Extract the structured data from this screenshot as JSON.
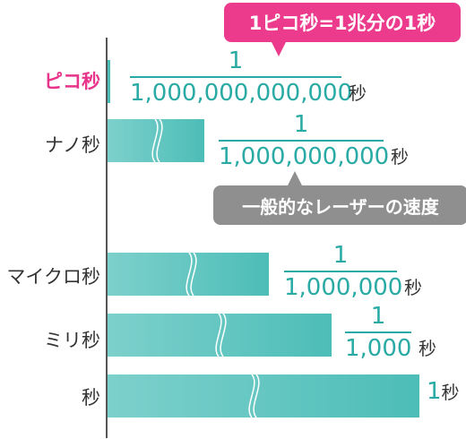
{
  "callouts": {
    "pico_definition": "1ピコ秒=1兆分の1秒",
    "laser_speed": "一般的なレーザーの速度"
  },
  "rows": [
    {
      "label": "ピコ秒",
      "numerator": "1",
      "denominator": "1,000,000,000,000",
      "unit": "秒"
    },
    {
      "label": "ナノ秒",
      "numerator": "1",
      "denominator": "1,000,000,000",
      "unit": "秒"
    },
    {
      "label": "マイクロ秒",
      "numerator": "1",
      "denominator": "1,000,000",
      "unit": "秒"
    },
    {
      "label": "ミリ秒",
      "numerator": "1",
      "denominator": "1,000",
      "unit": "秒"
    },
    {
      "label": "秒",
      "value": "1",
      "unit": "秒"
    }
  ],
  "colors": {
    "accent_pink": "#ec3a8c",
    "bar_teal": "#4dbdb7",
    "fraction_teal": "#2aaaa4",
    "callout_grey": "#8f8f8f"
  }
}
